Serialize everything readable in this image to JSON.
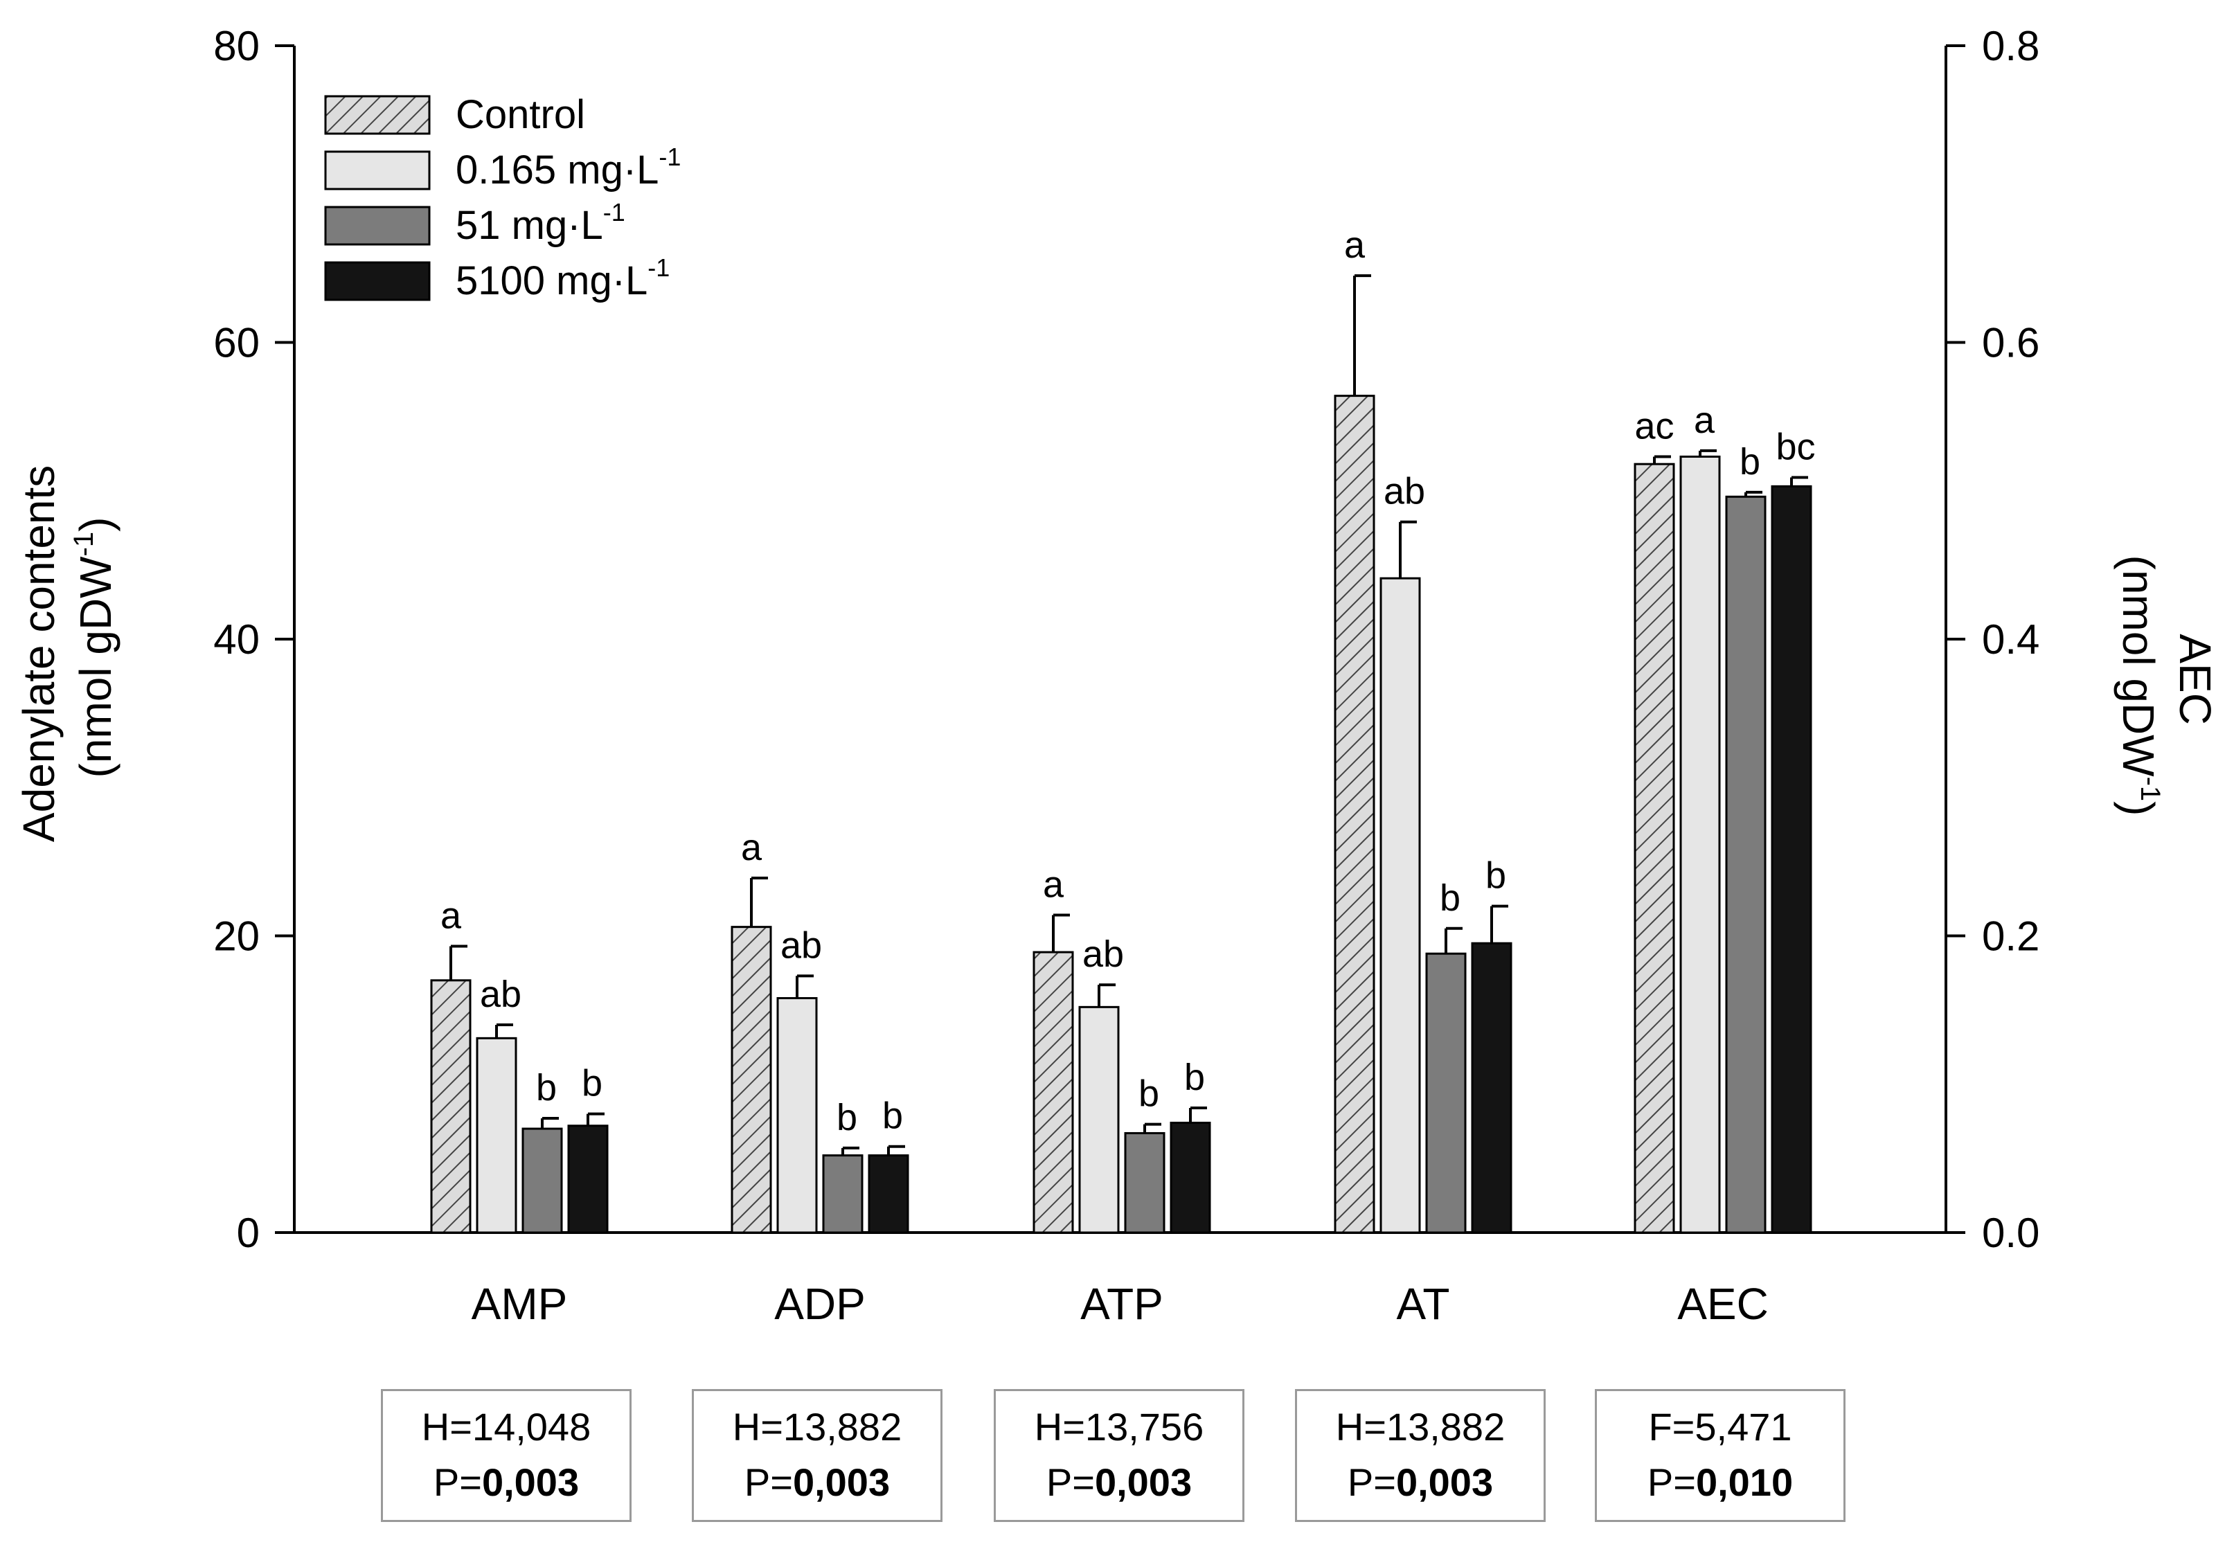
{
  "chart_data": {
    "type": "bar",
    "categories": [
      "AMP",
      "ADP",
      "ATP",
      "AT",
      "AEC"
    ],
    "series": [
      {
        "name": "Control",
        "name_unit": "",
        "values": [
          17.0,
          20.6,
          18.9,
          56.4,
          0.518
        ],
        "errors": [
          2.3,
          3.3,
          2.5,
          8.1,
          0.005
        ],
        "letters": [
          "a",
          "a",
          "a",
          "a",
          "ac"
        ],
        "pattern": "hatched",
        "color": "#dcdcdc"
      },
      {
        "name": "0.165 mg·L",
        "name_unit": "-1",
        "values": [
          13.1,
          15.8,
          15.2,
          44.1,
          0.523
        ],
        "errors": [
          0.9,
          1.5,
          1.5,
          3.8,
          0.004
        ],
        "letters": [
          "ab",
          "ab",
          "ab",
          "ab",
          "a"
        ],
        "pattern": "solid",
        "color": "#e6e6e6"
      },
      {
        "name": "51 mg·L",
        "name_unit": "-1",
        "values": [
          7.0,
          5.2,
          6.7,
          18.8,
          0.496
        ],
        "errors": [
          0.7,
          0.5,
          0.6,
          1.7,
          0.003
        ],
        "letters": [
          "b",
          "b",
          "b",
          "b",
          "b"
        ],
        "pattern": "solid",
        "color": "#7c7c7c"
      },
      {
        "name": "5100 mg·L",
        "name_unit": "-1",
        "values": [
          7.2,
          5.2,
          7.4,
          19.5,
          0.503
        ],
        "errors": [
          0.8,
          0.6,
          1.0,
          2.5,
          0.006
        ],
        "letters": [
          "b",
          "b",
          "b",
          "b",
          "bc"
        ],
        "pattern": "solid",
        "color": "#141414"
      }
    ],
    "left_axis": {
      "label_line1": "Adenylate contents",
      "label_line2": "(nmol gDW",
      "label_sup": "-1",
      "label_close": ")",
      "ylim": [
        0,
        80
      ],
      "ticks": [
        "0",
        "20",
        "40",
        "60",
        "80"
      ]
    },
    "right_axis": {
      "label_line1": "AEC",
      "label_line2": "(nmol gDW",
      "label_sup": "-1",
      "label_close": ")",
      "ylim": [
        0,
        0.8
      ],
      "ticks": [
        "0.0",
        "0.2",
        "0.4",
        "0.6",
        "0.8"
      ],
      "applies_to": "AEC"
    },
    "legend_placement": "top-left",
    "grid": false
  },
  "stats": [
    {
      "test": "H=14,048",
      "p_prefix": "P=",
      "p_value": "0,003"
    },
    {
      "test": "H=13,882",
      "p_prefix": "P=",
      "p_value": "0,003"
    },
    {
      "test": "H=13,756",
      "p_prefix": "P=",
      "p_value": "0,003"
    },
    {
      "test": "H=13,882",
      "p_prefix": "P=",
      "p_value": "0,003"
    },
    {
      "test": "F=5,471",
      "p_prefix": "P=",
      "p_value": "0,010"
    }
  ]
}
